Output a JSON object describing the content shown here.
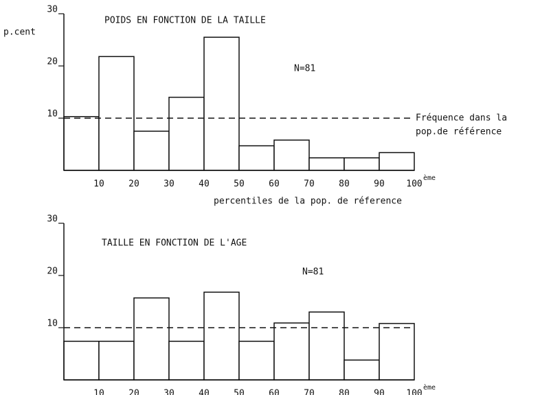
{
  "chart_data": [
    {
      "type": "histogram",
      "title": "POIDS EN FONCTION DE LA TAILLE",
      "annotation": "N=81",
      "y_label": "p.cent",
      "x_label": "percentiles de la pop. de réference",
      "reference_line": 10,
      "reference_label": [
        "Fréquence dans la",
        "pop.de référence"
      ],
      "bins": [
        0,
        10,
        20,
        30,
        40,
        50,
        60,
        70,
        80,
        90,
        100
      ],
      "values": [
        10.3,
        21.8,
        7.5,
        14,
        25.5,
        4.7,
        5.8,
        2.4,
        2.4,
        3.4
      ],
      "xlim": [
        0,
        100
      ],
      "xticks": [
        10,
        20,
        30,
        40,
        50,
        60,
        70,
        80,
        90,
        100
      ],
      "xtick_suffix": "ème",
      "ylim": [
        0,
        30
      ],
      "yticks": [
        10,
        20,
        30
      ],
      "color": "#ffffff"
    },
    {
      "type": "histogram",
      "title": "TAILLE EN FONCTION DE L'AGE",
      "annotation": "N=81",
      "reference_line": 10,
      "bins": [
        0,
        10,
        20,
        30,
        40,
        50,
        60,
        70,
        80,
        90,
        100
      ],
      "values": [
        7.4,
        7.4,
        15.7,
        7.4,
        16.8,
        7.4,
        10.9,
        13,
        3.8,
        10.8
      ],
      "xlim": [
        0,
        100
      ],
      "xticks": [
        10,
        20,
        30,
        40,
        50,
        60,
        70,
        80,
        90,
        100
      ],
      "xtick_suffix": "ème",
      "ylim": [
        0,
        30
      ],
      "yticks": [
        10,
        20,
        30
      ],
      "color": "#ffffff"
    }
  ]
}
